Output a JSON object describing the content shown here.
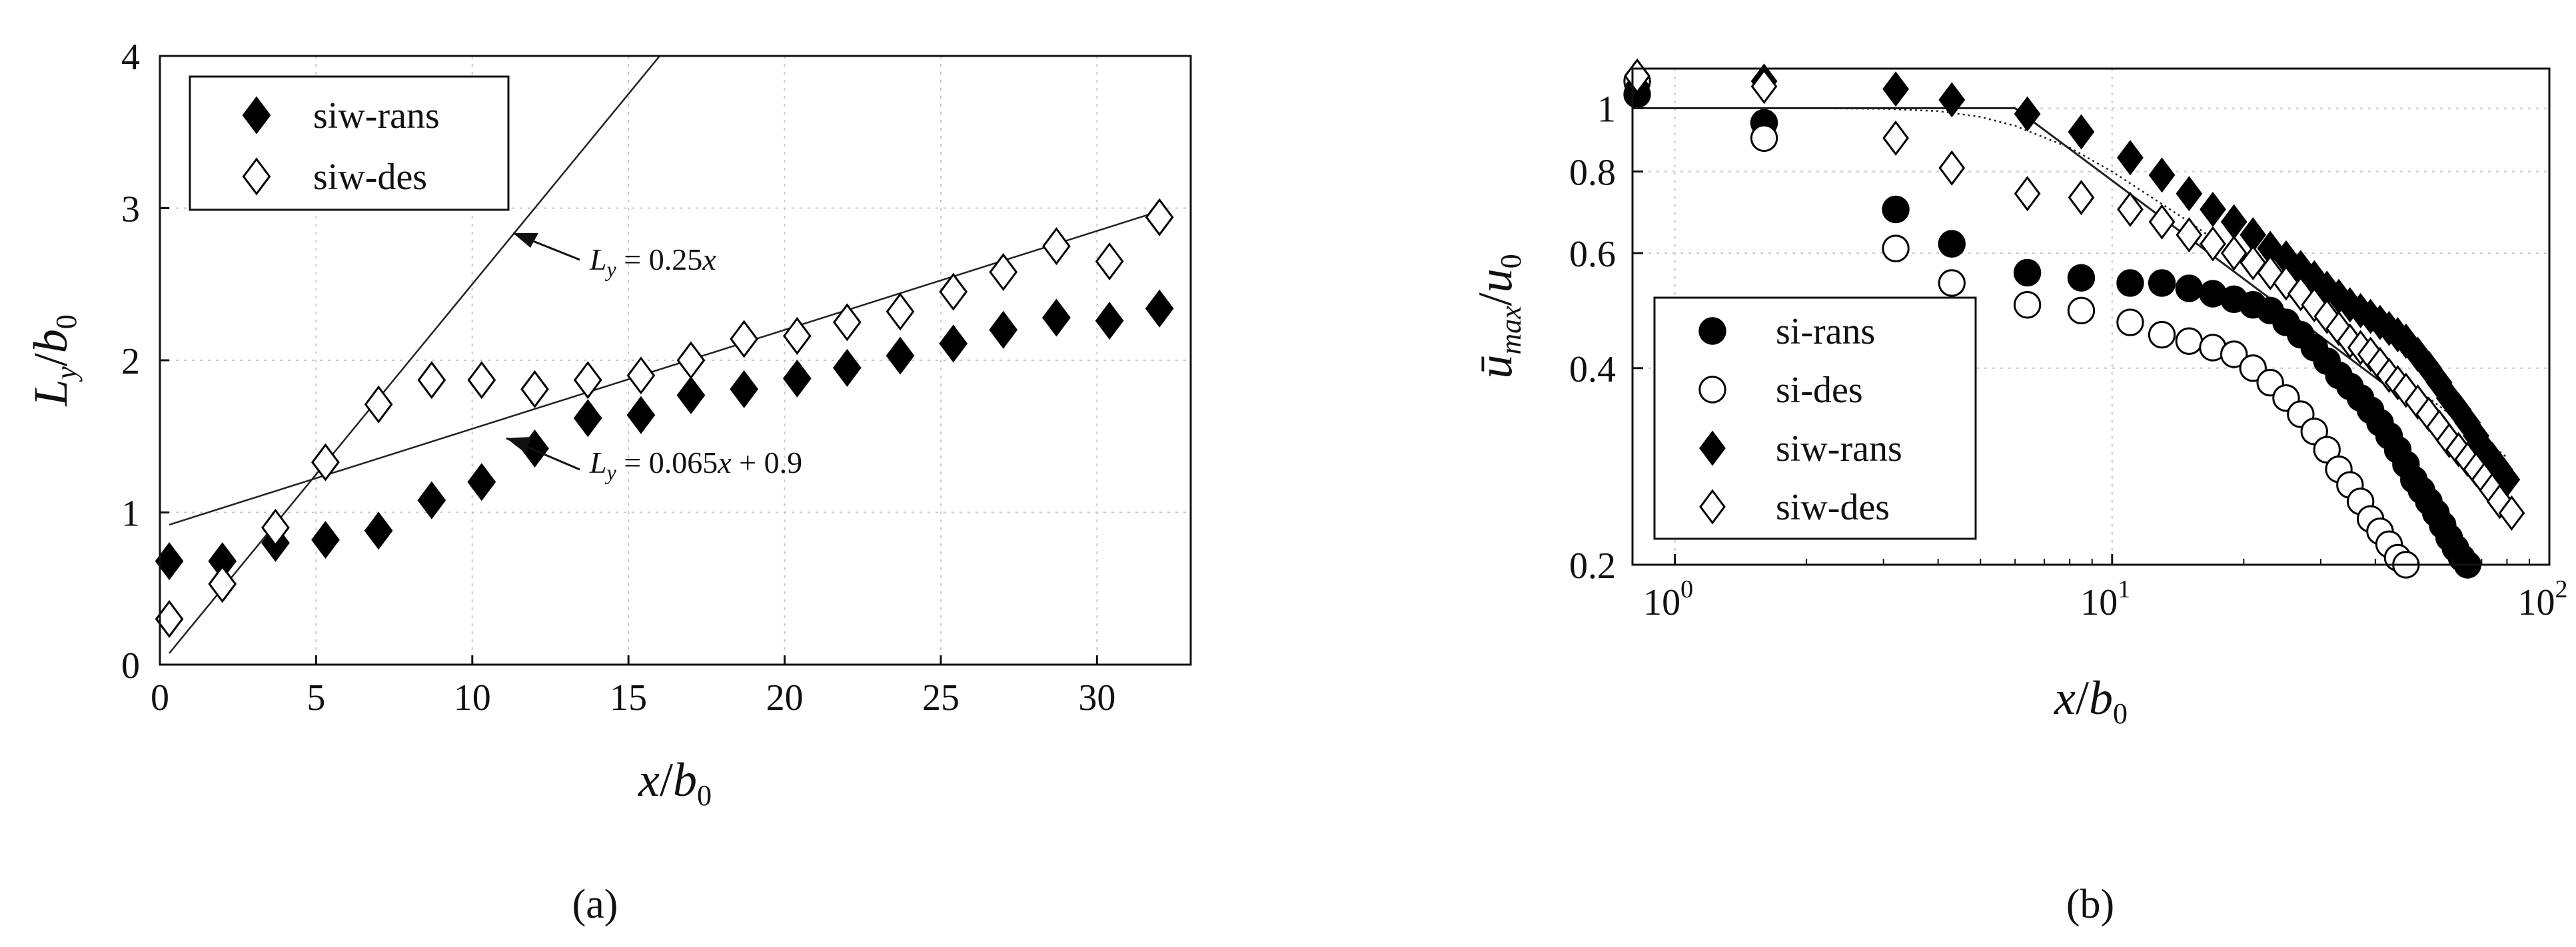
{
  "chart_data": [
    {
      "type": "scatter",
      "panel_label": "(a)",
      "xlabel": "x/b0",
      "ylabel": "Ly/b0",
      "xlim": [
        0,
        33
      ],
      "ylim": [
        0,
        4
      ],
      "xticks": [
        "0",
        "5",
        "10",
        "15",
        "20",
        "25",
        "30"
      ],
      "yticks": [
        "0",
        "1",
        "2",
        "3",
        "4"
      ],
      "grid": true,
      "legend_position": "top-left",
      "series": [
        {
          "name": "siw-rans",
          "marker": "filled-diamond",
          "x": [
            0.3,
            2.0,
            3.7,
            5.3,
            7.0,
            8.7,
            10.3,
            12.0,
            13.7,
            15.4,
            17.0,
            18.7,
            20.4,
            22.0,
            23.7,
            25.4,
            27.0,
            28.7,
            30.4,
            32.0
          ],
          "y": [
            0.68,
            0.68,
            0.8,
            0.82,
            0.88,
            1.08,
            1.2,
            1.42,
            1.62,
            1.64,
            1.77,
            1.81,
            1.88,
            1.95,
            2.03,
            2.11,
            2.2,
            2.28,
            2.26,
            2.34
          ]
        },
        {
          "name": "siw-des",
          "marker": "open-diamond",
          "x": [
            0.3,
            2.0,
            3.7,
            5.3,
            7.0,
            8.7,
            10.3,
            12.0,
            13.7,
            15.4,
            17.0,
            18.7,
            20.4,
            22.0,
            23.7,
            25.4,
            27.0,
            28.7,
            30.4,
            32.0
          ],
          "y": [
            0.3,
            0.53,
            0.9,
            1.33,
            1.71,
            1.87,
            1.87,
            1.81,
            1.87,
            1.9,
            2.0,
            2.14,
            2.16,
            2.25,
            2.32,
            2.45,
            2.58,
            2.75,
            2.65,
            2.94
          ]
        }
      ],
      "fit_lines": [
        {
          "label": "Ly = 0.25x",
          "slope": 0.25,
          "intercept": 0.0,
          "x_range": [
            0.3,
            16.0
          ]
        },
        {
          "label": "Ly = 0.065x + 0.9",
          "slope": 0.065,
          "intercept": 0.9,
          "x_range": [
            0.3,
            32.0
          ]
        }
      ]
    },
    {
      "type": "scatter",
      "panel_label": "(b)",
      "xlabel": "x/b0",
      "ylabel": "ūmax/u0",
      "xscale": "log",
      "yscale": "log",
      "xlim": [
        0.8,
        100
      ],
      "ylim": [
        0.2,
        1.15
      ],
      "xticks": [
        "10^0",
        "10^1",
        "10^2"
      ],
      "yticks": [
        "0.2",
        "0.4",
        "0.6",
        "0.8",
        "1"
      ],
      "grid": true,
      "legend_position": "bottom-left",
      "series": [
        {
          "name": "si-rans",
          "marker": "filled-circle",
          "x": [
            0.82,
            1.6,
            3.2,
            4.3,
            6.4,
            8.5,
            11,
            13,
            15,
            17,
            19,
            21,
            23,
            25,
            27,
            29,
            31,
            33,
            35,
            37,
            39,
            41,
            43,
            45,
            47,
            49,
            51,
            53,
            55,
            57,
            59,
            61,
            63,
            65
          ],
          "y": [
            1.05,
            0.95,
            0.7,
            0.62,
            0.56,
            0.55,
            0.54,
            0.54,
            0.53,
            0.52,
            0.51,
            0.5,
            0.49,
            0.47,
            0.45,
            0.43,
            0.41,
            0.39,
            0.375,
            0.36,
            0.345,
            0.33,
            0.315,
            0.3,
            0.285,
            0.27,
            0.26,
            0.25,
            0.24,
            0.23,
            0.22,
            0.212,
            0.205,
            0.2
          ]
        },
        {
          "name": "si-des",
          "marker": "open-circle",
          "x": [
            0.82,
            1.6,
            3.2,
            4.3,
            6.4,
            8.5,
            11,
            13,
            15,
            17,
            19,
            21,
            23,
            25,
            27,
            29,
            31,
            33,
            35,
            37,
            39,
            41,
            43,
            45,
            47
          ],
          "y": [
            1.1,
            0.9,
            0.61,
            0.54,
            0.5,
            0.49,
            0.47,
            0.45,
            0.44,
            0.43,
            0.42,
            0.4,
            0.38,
            0.36,
            0.34,
            0.32,
            0.3,
            0.28,
            0.265,
            0.25,
            0.235,
            0.225,
            0.215,
            0.205,
            0.2
          ]
        },
        {
          "name": "siw-rans",
          "marker": "filled-diamond",
          "x": [
            0.82,
            1.6,
            3.2,
            4.3,
            6.4,
            8.5,
            11,
            13,
            15,
            17,
            19,
            21,
            23,
            25,
            27,
            29,
            31,
            33,
            35,
            37,
            39,
            41,
            43,
            45,
            47,
            50,
            53,
            56,
            59,
            62,
            65,
            68,
            71,
            74,
            77,
            80
          ],
          "y": [
            1.08,
            1.1,
            1.07,
            1.03,
            0.98,
            0.92,
            0.84,
            0.79,
            0.74,
            0.7,
            0.67,
            0.64,
            0.61,
            0.59,
            0.57,
            0.55,
            0.53,
            0.515,
            0.5,
            0.49,
            0.48,
            0.47,
            0.46,
            0.45,
            0.44,
            0.42,
            0.4,
            0.38,
            0.36,
            0.345,
            0.33,
            0.315,
            0.3,
            0.29,
            0.28,
            0.27
          ]
        },
        {
          "name": "siw-des",
          "marker": "open-diamond",
          "x": [
            0.82,
            1.6,
            3.2,
            4.3,
            6.4,
            8.5,
            11,
            13,
            15,
            17,
            19,
            21,
            23,
            25,
            27,
            29,
            31,
            33,
            35,
            37,
            39,
            41,
            43,
            45,
            47,
            50,
            53,
            56,
            59,
            62,
            65,
            68,
            71,
            74,
            77,
            82
          ],
          "y": [
            1.12,
            1.08,
            0.9,
            0.81,
            0.74,
            0.73,
            0.7,
            0.67,
            0.64,
            0.62,
            0.6,
            0.58,
            0.56,
            0.54,
            0.52,
            0.5,
            0.48,
            0.46,
            0.44,
            0.43,
            0.42,
            0.405,
            0.39,
            0.38,
            0.37,
            0.355,
            0.34,
            0.325,
            0.31,
            0.3,
            0.29,
            0.28,
            0.27,
            0.26,
            0.25,
            0.24
          ]
        }
      ],
      "reference_curves": [
        {
          "style": "solid",
          "x": [
            0.8,
            6.0,
            10,
            20,
            40,
            80
          ],
          "y": [
            1.0,
            1.0,
            0.775,
            0.548,
            0.387,
            0.274
          ]
        },
        {
          "style": "dotted",
          "x": [
            0.8,
            2,
            3,
            4,
            5,
            6,
            8,
            10,
            15,
            20,
            30,
            40,
            60,
            80
          ],
          "y": [
            1.0,
            1.0,
            0.998,
            0.99,
            0.97,
            0.94,
            0.87,
            0.8,
            0.67,
            0.585,
            0.48,
            0.415,
            0.338,
            0.292
          ]
        }
      ]
    }
  ]
}
